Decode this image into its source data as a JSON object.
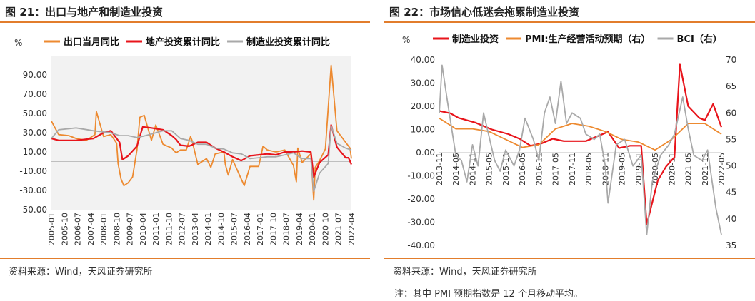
{
  "left": {
    "title": "图 21：出口与地产和制造业投资",
    "source": "资料来源：Wind，天风证券研究所"
  },
  "right": {
    "title": "图 22：市场信心低迷会拖累制造业投资",
    "source": "资料来源：Wind，天风证券研究所",
    "note": "注：其中 PMI 预期指数是 12 个月移动平均。"
  },
  "colors": {
    "accent": "#e27d2c",
    "red": "#e8141b",
    "orange": "#ed8a30",
    "gray": "#a9a9a9",
    "plotbg": "#f2f2f2"
  },
  "chart_data": [
    {
      "type": "line",
      "ylabel": "%",
      "ylim": [
        -50,
        110
      ],
      "yticks": [
        -50,
        -30,
        -10,
        10,
        30,
        50,
        70,
        90
      ],
      "ytick_labels": [
        "-50.00",
        "-30.00",
        "-10.00",
        "10.00",
        "30.00",
        "50.00",
        "70.00",
        "90.00"
      ],
      "xlim": [
        "2005-01",
        "2022-04"
      ],
      "xtick_labels": [
        "2005-01",
        "2005-10",
        "2006-07",
        "2007-04",
        "2008-01",
        "2008-10",
        "2009-07",
        "2010-04",
        "2011-01",
        "2011-10",
        "2012-07",
        "2013-04",
        "2014-01",
        "2014-10",
        "2015-07",
        "2016-04",
        "2017-01",
        "2017-10",
        "2018-07",
        "2019-04",
        "2020-01",
        "2020-10",
        "2021-07",
        "2022-04"
      ],
      "legend_position": "top",
      "series": [
        {
          "name": "出口当月同比",
          "color": "#ed8a30",
          "x": [
            "2005-01",
            "2005-06",
            "2006-01",
            "2006-06",
            "2007-01",
            "2007-06",
            "2007-07",
            "2007-08",
            "2008-01",
            "2008-06",
            "2008-10",
            "2008-11",
            "2009-01",
            "2009-03",
            "2009-06",
            "2009-09",
            "2009-12",
            "2010-02",
            "2010-05",
            "2010-10",
            "2011-01",
            "2011-06",
            "2011-12",
            "2012-03",
            "2012-06",
            "2012-10",
            "2013-01",
            "2013-02",
            "2013-06",
            "2013-12",
            "2014-03",
            "2014-06",
            "2014-12",
            "2015-01",
            "2015-03",
            "2015-06",
            "2016-02",
            "2016-06",
            "2016-12",
            "2017-03",
            "2017-06",
            "2017-12",
            "2018-06",
            "2018-12",
            "2019-02",
            "2019-03",
            "2019-06",
            "2019-12",
            "2020-02",
            "2020-03",
            "2020-06",
            "2020-10",
            "2021-02",
            "2021-06",
            "2021-12",
            "2022-03",
            "2022-04"
          ],
          "y": [
            42,
            28,
            27,
            24,
            22,
            27,
            28,
            52,
            26,
            28,
            19,
            -2,
            -18,
            -25,
            -22,
            -16,
            12,
            46,
            48,
            22,
            38,
            18,
            14,
            9,
            12,
            12,
            26,
            22,
            -3,
            3,
            -6,
            8,
            10,
            -3,
            -14,
            2,
            -25,
            -5,
            -5,
            16,
            12,
            10,
            12,
            -4,
            -21,
            14,
            -1,
            8,
            -40,
            -6,
            1,
            13,
            100,
            32,
            20,
            14,
            3
          ]
        },
        {
          "name": "地产投资累计同比",
          "color": "#e8141b",
          "x": [
            "2005-01",
            "2005-06",
            "2006-06",
            "2007-06",
            "2008-01",
            "2008-06",
            "2008-12",
            "2009-02",
            "2009-06",
            "2009-12",
            "2010-04",
            "2010-10",
            "2011-06",
            "2011-12",
            "2012-03",
            "2012-06",
            "2012-12",
            "2013-06",
            "2013-12",
            "2014-06",
            "2014-12",
            "2015-06",
            "2015-12",
            "2016-06",
            "2016-12",
            "2017-06",
            "2017-12",
            "2018-06",
            "2018-12",
            "2019-06",
            "2019-12",
            "2020-02",
            "2020-06",
            "2020-12",
            "2021-02",
            "2021-06",
            "2021-12",
            "2022-02",
            "2022-04"
          ],
          "y": [
            24,
            22,
            22,
            24,
            30,
            32,
            20,
            2,
            6,
            16,
            36,
            35,
            33,
            27,
            23,
            17,
            16,
            20,
            20,
            14,
            10,
            5,
            1,
            6,
            7,
            8,
            7,
            10,
            10,
            11,
            10,
            -16,
            -1,
            7,
            38,
            15,
            4,
            4,
            -3
          ]
        },
        {
          "name": "制造业投资累计同比",
          "color": "#a9a9a9",
          "x": [
            "2005-01",
            "2005-06",
            "2006-06",
            "2007-06",
            "2008-06",
            "2008-12",
            "2009-06",
            "2009-12",
            "2010-06",
            "2011-06",
            "2011-12",
            "2012-06",
            "2012-12",
            "2013-06",
            "2013-12",
            "2014-06",
            "2014-12",
            "2015-06",
            "2015-12",
            "2016-06",
            "2016-12",
            "2017-06",
            "2017-12",
            "2018-06",
            "2018-12",
            "2019-06",
            "2019-12",
            "2020-02",
            "2020-06",
            "2020-12",
            "2021-02",
            "2021-06",
            "2021-12",
            "2022-04"
          ],
          "y": [
            24,
            33,
            35,
            32,
            30,
            27,
            27,
            25,
            27,
            32,
            32,
            24,
            22,
            18,
            18,
            14,
            13,
            9,
            8,
            3,
            4,
            5,
            5,
            7,
            9,
            3,
            3,
            -31,
            -12,
            -2,
            37,
            19,
            14,
            12
          ]
        }
      ]
    },
    {
      "type": "line",
      "ylabel": "%",
      "ylim": [
        -40,
        40
      ],
      "yticks": [
        -40,
        -30,
        -20,
        -10,
        0,
        10,
        20,
        30,
        40
      ],
      "ytick_labels": [
        "-40.00",
        "-30.00",
        "-20.00",
        "-10.00",
        "0.00",
        "10.00",
        "20.00",
        "30.00",
        "40.00"
      ],
      "y2lim": [
        35,
        70
      ],
      "y2ticks": [
        35,
        40,
        45,
        50,
        55,
        60,
        65,
        70
      ],
      "y2tick_labels": [
        "35",
        "40",
        "45",
        "50",
        "55",
        "60",
        "65",
        "70"
      ],
      "xlim": [
        "2013-11",
        "2022-05"
      ],
      "xtick_labels": [
        "2013-11",
        "2014-05",
        "2014-11",
        "2015-05",
        "2015-11",
        "2016-05",
        "2016-11",
        "2017-05",
        "2017-11",
        "2018-05",
        "2018-11",
        "2019-05",
        "2019-11",
        "2020-05",
        "2020-11",
        "2021-05",
        "2021-11",
        "2022-05"
      ],
      "legend_position": "top",
      "series": [
        {
          "name": "制造业投资",
          "color": "#e8141b",
          "axis": "left",
          "x": [
            "2013-11",
            "2014-03",
            "2014-06",
            "2014-12",
            "2015-06",
            "2015-12",
            "2016-04",
            "2016-08",
            "2016-12",
            "2017-04",
            "2017-08",
            "2017-12",
            "2018-04",
            "2018-08",
            "2018-12",
            "2019-04",
            "2019-08",
            "2019-12",
            "2020-02",
            "2020-06",
            "2020-09",
            "2020-12",
            "2021-02",
            "2021-05",
            "2021-09",
            "2021-11",
            "2022-02",
            "2022-05"
          ],
          "y": [
            18,
            17,
            15,
            13,
            10,
            8,
            6,
            3,
            4,
            6,
            5,
            5,
            5,
            7,
            9,
            2,
            3,
            3,
            -31,
            -12,
            -6,
            -2,
            38,
            20,
            15,
            14,
            21,
            11
          ]
        },
        {
          "name": "PMI:生产经营活动预期（右）",
          "color": "#ed8a30",
          "axis": "right",
          "x": [
            "2013-11",
            "2014-05",
            "2014-11",
            "2015-05",
            "2015-11",
            "2016-05",
            "2016-11",
            "2017-05",
            "2017-11",
            "2018-05",
            "2018-11",
            "2019-05",
            "2019-11",
            "2020-05",
            "2020-11",
            "2021-05",
            "2021-11",
            "2022-05"
          ],
          "y": [
            59,
            57,
            57,
            56.5,
            55,
            53.5,
            54,
            57,
            58,
            57.5,
            56.5,
            55,
            54.5,
            53,
            55,
            58,
            58,
            56
          ]
        },
        {
          "name": "BCI（右）",
          "color": "#a9a9a9",
          "axis": "right",
          "x": [
            "2013-11",
            "2013-12",
            "2014-02",
            "2014-05",
            "2014-07",
            "2014-09",
            "2014-11",
            "2015-01",
            "2015-03",
            "2015-07",
            "2015-09",
            "2015-11",
            "2016-02",
            "2016-04",
            "2016-06",
            "2016-09",
            "2016-11",
            "2017-01",
            "2017-03",
            "2017-05",
            "2017-07",
            "2017-09",
            "2017-11",
            "2018-02",
            "2018-04",
            "2018-07",
            "2018-09",
            "2018-11",
            "2018-12",
            "2019-03",
            "2019-06",
            "2019-09",
            "2019-12",
            "2020-02",
            "2020-04",
            "2020-07",
            "2020-10",
            "2020-12",
            "2021-03",
            "2021-05",
            "2021-07",
            "2021-10",
            "2021-12",
            "2022-03",
            "2022-05"
          ],
          "y": [
            60,
            69,
            62,
            52,
            51,
            47,
            54,
            50,
            60,
            51,
            49,
            53,
            50,
            53,
            59,
            55,
            51,
            60,
            63,
            58,
            66,
            58,
            60,
            59,
            56,
            55,
            56,
            50,
            43,
            54,
            55,
            50,
            52,
            37,
            47,
            52,
            54,
            56,
            63,
            57,
            52,
            51,
            53,
            42,
            37
          ]
        }
      ]
    }
  ]
}
